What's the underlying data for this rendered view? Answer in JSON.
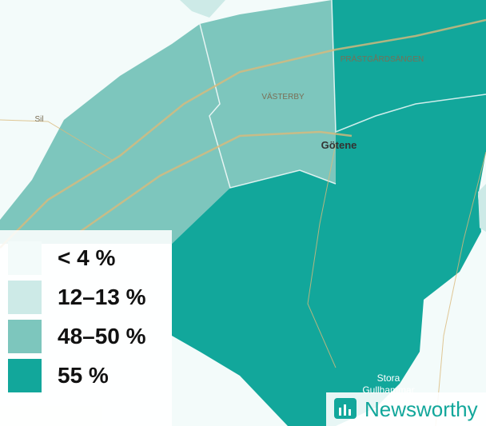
{
  "map": {
    "places": [
      "Sil",
      "VÄSTERBY",
      "PRÄSTGÅRDSÄNGEN",
      "Götene",
      "Stora",
      "Gullhammar"
    ],
    "legend": [
      {
        "label": "< 4 %",
        "color": "#f3fbfa"
      },
      {
        "label": "12–13 %",
        "color": "#cdeae7"
      },
      {
        "label": "48–50 %",
        "color": "#7dc6bd"
      },
      {
        "label": "55 %",
        "color": "#12a79b"
      }
    ],
    "brand": "Newsworthy"
  }
}
